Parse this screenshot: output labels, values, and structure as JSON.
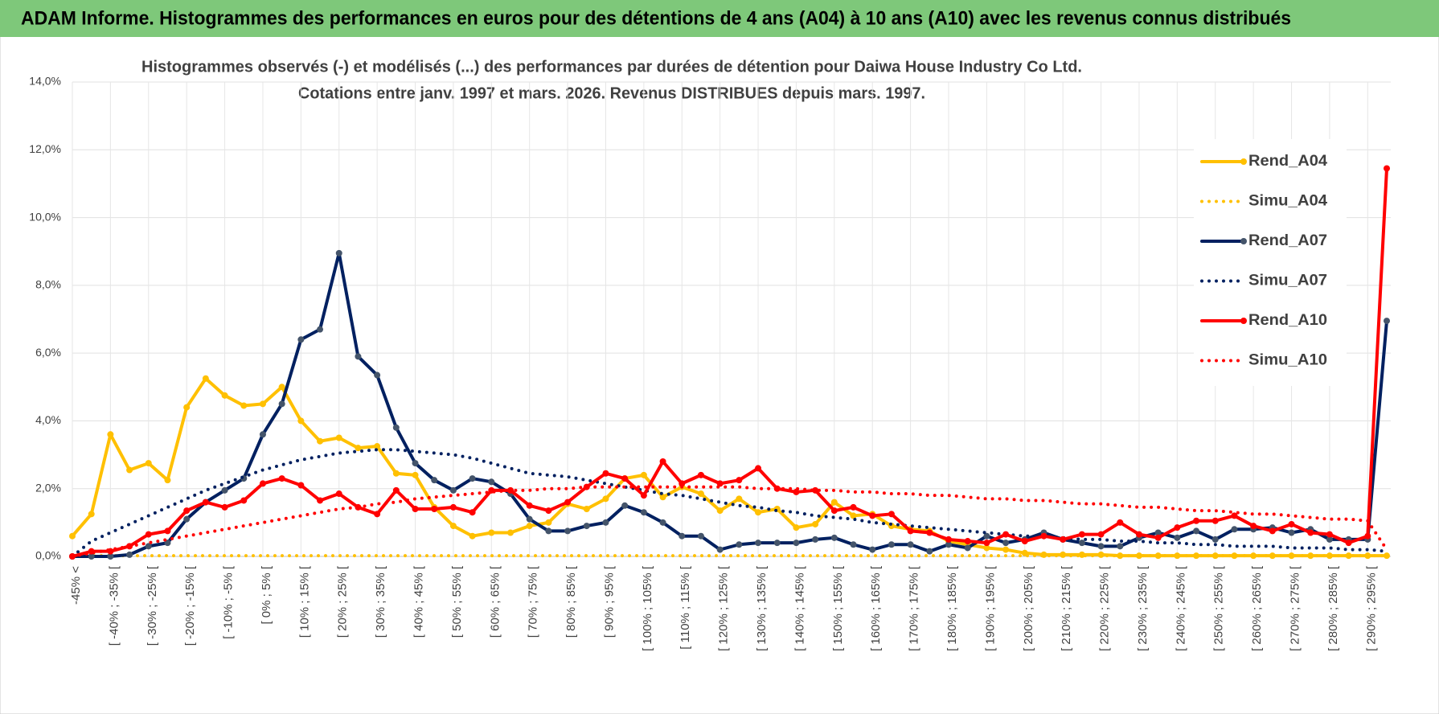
{
  "chart_data": {
    "type": "line",
    "header": "ADAM Informe. Histogrammes des performances en euros pour des détentions de 4 ans (A04) à 10 ans (A10) avec les revenus connus distribués",
    "title": "Histogrammes observés (-) et modélisés (...) des performances par durées de détention pour Daiwa House Industry Co Ltd.",
    "subtitle": "Cotations entre janv. 1997 et mars. 2026. Revenus DISTRIBUES depuis mars. 1997.",
    "categories": [
      "-45% <",
      null,
      "[ -40% ; -35% [",
      null,
      "[ -30% ; -25% [",
      null,
      "[ -20% ; -15% [",
      null,
      "[ -10% ; -5% [",
      null,
      "[ 0% ; 5% [",
      null,
      "[ 10% ; 15% [",
      null,
      "[ 20% ; 25% [",
      null,
      "[ 30% ; 35% [",
      null,
      "[ 40% ; 45% [",
      null,
      "[ 50% ; 55% [",
      null,
      "[ 60% ; 65% [",
      null,
      "[ 70% ; 75% [",
      null,
      "[ 80% ; 85% [",
      null,
      "[ 90% ; 95% [",
      null,
      "[ 100% ; 105% [",
      null,
      "[ 110% ; 115% [",
      null,
      "[ 120% ; 125% [",
      null,
      "[ 130% ; 135% [",
      null,
      "[ 140% ; 145% [",
      null,
      "[ 150% ; 155% [",
      null,
      "[ 160% ; 165% [",
      null,
      "[ 170% ; 175% [",
      null,
      "[ 180% ; 185% [",
      null,
      "[ 190% ; 195% [",
      null,
      "[ 200% ; 205% [",
      null,
      "[ 210% ; 215% [",
      null,
      "[ 220% ; 225% [",
      null,
      "[ 230% ; 235% [",
      null,
      "[ 240% ; 245% [",
      null,
      "[ 250% ; 255% [",
      null,
      "[ 260% ; 265% [",
      null,
      "[ 270% ; 275% [",
      null,
      "[ 280% ; 285% [",
      null,
      "[ 290% ; 295% [",
      null
    ],
    "series": [
      {
        "name": "Rend_A04",
        "color": "#ffc000",
        "style": "solid",
        "values": [
          0.6,
          1.25,
          3.6,
          2.55,
          2.75,
          2.25,
          4.4,
          5.25,
          4.75,
          4.45,
          4.5,
          5.0,
          4.0,
          3.4,
          3.5,
          3.2,
          3.25,
          2.45,
          2.4,
          1.45,
          0.9,
          0.6,
          0.7,
          0.7,
          0.9,
          1.0,
          1.55,
          1.4,
          1.7,
          2.3,
          2.4,
          1.75,
          2.05,
          1.85,
          1.35,
          1.7,
          1.3,
          1.4,
          0.85,
          0.95,
          1.6,
          1.2,
          1.25,
          0.9,
          0.8,
          0.75,
          0.45,
          0.35,
          0.25,
          0.2,
          0.1,
          0.05,
          0.05,
          0.05,
          0.05,
          0.02,
          0.02,
          0.02,
          0.02,
          0.02,
          0.02,
          0.02,
          0.02,
          0.02,
          0.02,
          0.02,
          0.02,
          0.02,
          0.02,
          0.02
        ]
      },
      {
        "name": "Simu_A04",
        "color": "#ffc000",
        "style": "dotted",
        "values": [
          0.02,
          0.02,
          0.02,
          0.02,
          0.02,
          0.02,
          0.02,
          0.02,
          0.02,
          0.02,
          0.02,
          0.02,
          0.02,
          0.02,
          0.02,
          0.02,
          0.02,
          0.02,
          0.02,
          0.02,
          0.02,
          0.02,
          0.02,
          0.02,
          0.02,
          0.02,
          0.02,
          0.02,
          0.02,
          0.02,
          0.02,
          0.02,
          0.02,
          0.02,
          0.02,
          0.02,
          0.02,
          0.02,
          0.02,
          0.02,
          0.02,
          0.02,
          0.02,
          0.02,
          0.02,
          0.02,
          0.02,
          0.02,
          0.02,
          0.02,
          0.02,
          0.02,
          0.02,
          0.02,
          0.02,
          0.02,
          0.02,
          0.02,
          0.02,
          0.02,
          0.02,
          0.02,
          0.02,
          0.02,
          0.02,
          0.02,
          0.02,
          0.02,
          0.02,
          0.02
        ]
      },
      {
        "name": "Rend_A07",
        "color": "#002060",
        "style": "solid",
        "values": [
          0,
          0,
          0,
          0.05,
          0.3,
          0.4,
          1.1,
          1.6,
          1.95,
          2.3,
          3.6,
          4.5,
          6.4,
          6.7,
          8.95,
          5.9,
          5.35,
          3.8,
          2.75,
          2.25,
          1.95,
          2.3,
          2.2,
          1.85,
          1.1,
          0.75,
          0.75,
          0.9,
          1.0,
          1.5,
          1.3,
          1.0,
          0.6,
          0.6,
          0.2,
          0.35,
          0.4,
          0.4,
          0.4,
          0.5,
          0.55,
          0.35,
          0.2,
          0.35,
          0.35,
          0.15,
          0.35,
          0.25,
          0.6,
          0.4,
          0.5,
          0.7,
          0.5,
          0.4,
          0.3,
          0.3,
          0.55,
          0.7,
          0.55,
          0.75,
          0.5,
          0.8,
          0.8,
          0.85,
          0.7,
          0.8,
          0.5,
          0.5,
          0.5,
          6.95
        ]
      },
      {
        "name": "Simu_A07",
        "color": "#002060",
        "style": "dotted",
        "values": [
          0,
          0.45,
          0.7,
          0.95,
          1.2,
          1.45,
          1.7,
          1.95,
          2.15,
          2.35,
          2.55,
          2.7,
          2.85,
          2.95,
          3.05,
          3.1,
          3.15,
          3.15,
          3.1,
          3.05,
          3.0,
          2.9,
          2.75,
          2.6,
          2.45,
          2.4,
          2.35,
          2.25,
          2.15,
          2.05,
          1.95,
          1.85,
          1.8,
          1.7,
          1.6,
          1.5,
          1.45,
          1.35,
          1.3,
          1.2,
          1.15,
          1.1,
          1.0,
          0.95,
          0.9,
          0.85,
          0.8,
          0.75,
          0.7,
          0.65,
          0.6,
          0.6,
          0.55,
          0.5,
          0.5,
          0.45,
          0.45,
          0.4,
          0.4,
          0.35,
          0.35,
          0.3,
          0.3,
          0.3,
          0.25,
          0.25,
          0.25,
          0.2,
          0.2,
          0.15
        ]
      },
      {
        "name": "Rend_A10",
        "color": "#ff0000",
        "style": "solid",
        "values": [
          0,
          0.15,
          0.15,
          0.3,
          0.65,
          0.75,
          1.35,
          1.6,
          1.45,
          1.65,
          2.15,
          2.3,
          2.1,
          1.65,
          1.85,
          1.45,
          1.25,
          1.95,
          1.4,
          1.4,
          1.45,
          1.3,
          1.95,
          1.95,
          1.5,
          1.35,
          1.6,
          2.05,
          2.45,
          2.3,
          1.8,
          2.8,
          2.15,
          2.4,
          2.15,
          2.25,
          2.6,
          2.0,
          1.9,
          1.95,
          1.35,
          1.45,
          1.2,
          1.25,
          0.75,
          0.7,
          0.5,
          0.45,
          0.4,
          0.65,
          0.45,
          0.6,
          0.5,
          0.65,
          0.65,
          1.0,
          0.65,
          0.55,
          0.85,
          1.05,
          1.05,
          1.2,
          0.9,
          0.75,
          0.95,
          0.7,
          0.65,
          0.4,
          0.6,
          11.45
        ]
      },
      {
        "name": "Simu_A10",
        "color": "#ff0000",
        "style": "dotted",
        "values": [
          0,
          0.1,
          0.2,
          0.3,
          0.4,
          0.5,
          0.6,
          0.7,
          0.8,
          0.9,
          1.0,
          1.1,
          1.2,
          1.3,
          1.4,
          1.45,
          1.55,
          1.6,
          1.7,
          1.75,
          1.8,
          1.85,
          1.9,
          1.95,
          1.95,
          2.0,
          2.0,
          2.05,
          2.05,
          2.05,
          2.05,
          2.05,
          2.05,
          2.05,
          2.05,
          2.05,
          2.0,
          2.0,
          2.0,
          1.95,
          1.95,
          1.9,
          1.9,
          1.85,
          1.85,
          1.8,
          1.8,
          1.75,
          1.7,
          1.7,
          1.65,
          1.65,
          1.6,
          1.55,
          1.55,
          1.5,
          1.45,
          1.45,
          1.4,
          1.35,
          1.35,
          1.3,
          1.25,
          1.25,
          1.2,
          1.15,
          1.1,
          1.1,
          1.05,
          0.2
        ]
      }
    ],
    "ylim": [
      0,
      14
    ],
    "yticks": [
      {
        "value": 0,
        "label": "0,0%"
      },
      {
        "value": 2,
        "label": "2,0%"
      },
      {
        "value": 4,
        "label": "4,0%"
      },
      {
        "value": 6,
        "label": "6,0%"
      },
      {
        "value": 8,
        "label": "8,0%"
      },
      {
        "value": 10,
        "label": "10,0%"
      },
      {
        "value": 12,
        "label": "12,0%"
      },
      {
        "value": 14,
        "label": "14,0%"
      }
    ],
    "grid": true,
    "legend": "right"
  }
}
